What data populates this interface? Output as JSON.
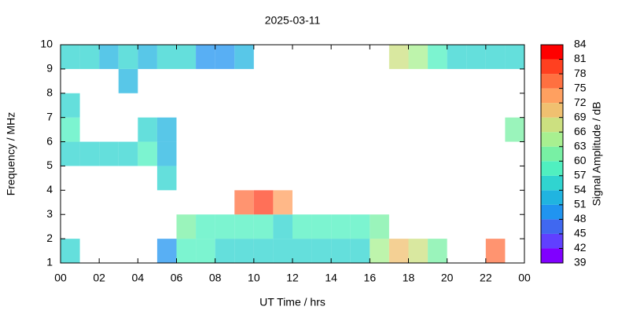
{
  "chart_data": {
    "type": "heatmap",
    "title": "2025-03-11",
    "xlabel": "UT Time / hrs",
    "ylabel": "Frequency / MHz",
    "zlabel": "Signal Amplitude / dB",
    "x_bins": [
      0,
      1,
      2,
      3,
      4,
      5,
      6,
      7,
      8,
      9,
      10,
      11,
      12,
      13,
      14,
      15,
      16,
      17,
      18,
      19,
      20,
      21,
      22,
      23,
      24
    ],
    "y_bins": [
      1,
      2,
      3,
      4,
      5,
      6,
      7,
      8,
      9,
      10
    ],
    "z": [
      [
        55,
        null,
        null,
        null,
        null,
        50,
        57,
        58,
        56,
        55,
        54,
        54,
        55,
        54,
        55,
        56,
        63,
        69,
        66,
        62,
        null,
        null,
        75,
        null
      ],
      [
        null,
        null,
        null,
        null,
        null,
        null,
        61,
        59,
        58,
        57,
        58,
        56,
        57,
        57,
        57,
        58,
        60,
        null,
        null,
        null,
        null,
        null,
        null,
        null
      ],
      [
        null,
        null,
        null,
        null,
        null,
        null,
        null,
        null,
        null,
        77,
        80,
        72,
        null,
        null,
        null,
        null,
        null,
        null,
        null,
        null,
        null,
        null,
        null,
        null
      ],
      [
        null,
        null,
        null,
        null,
        null,
        54,
        null,
        null,
        null,
        null,
        null,
        null,
        null,
        null,
        null,
        null,
        null,
        null,
        null,
        null,
        null,
        null,
        null,
        null
      ],
      [
        55,
        56,
        55,
        56,
        57,
        52,
        null,
        null,
        null,
        null,
        null,
        null,
        null,
        null,
        null,
        null,
        null,
        null,
        null,
        null,
        null,
        null,
        null,
        null
      ],
      [
        57,
        null,
        null,
        null,
        55,
        53,
        null,
        null,
        null,
        null,
        null,
        null,
        null,
        null,
        null,
        null,
        null,
        null,
        null,
        null,
        null,
        null,
        null,
        60
      ],
      [
        56,
        null,
        null,
        null,
        null,
        null,
        null,
        null,
        null,
        null,
        null,
        null,
        null,
        null,
        null,
        null,
        null,
        null,
        null,
        null,
        null,
        null,
        null,
        null
      ],
      [
        null,
        null,
        null,
        52,
        null,
        null,
        null,
        null,
        null,
        null,
        null,
        null,
        null,
        null,
        null,
        null,
        null,
        null,
        null,
        null,
        null,
        null,
        null,
        null
      ],
      [
        55,
        55,
        52,
        54,
        52,
        54,
        55,
        50,
        48,
        52,
        null,
        null,
        null,
        null,
        null,
        null,
        null,
        66,
        64,
        58,
        56,
        56,
        55,
        55
      ]
    ],
    "xlim": [
      0,
      24
    ],
    "xticks": [
      {
        "value": 0,
        "label": "00"
      },
      {
        "value": 2,
        "label": "02"
      },
      {
        "value": 4,
        "label": "04"
      },
      {
        "value": 6,
        "label": "06"
      },
      {
        "value": 8,
        "label": "08"
      },
      10,
      12,
      14,
      16,
      18,
      20,
      22,
      {
        "value": 24,
        "label": "00"
      }
    ],
    "ylim": [
      1,
      10
    ],
    "yticks": [
      1,
      2,
      3,
      4,
      5,
      6,
      7,
      8,
      9,
      10
    ],
    "zlim": [
      39,
      84
    ],
    "zticks": [
      39,
      42,
      45,
      48,
      51,
      54,
      57,
      60,
      63,
      66,
      69,
      72,
      75,
      78,
      81,
      84
    ],
    "colors": [
      "#8000ff",
      "#6040ff",
      "#4068f0",
      "#2094f0",
      "#20b4e0",
      "#30d4d0",
      "#50f0c0",
      "#78f0a4",
      "#a8f090",
      "#cce080",
      "#f0c070",
      "#ffa060",
      "#ff7040",
      "#ff4020",
      "#ff0000"
    ]
  }
}
